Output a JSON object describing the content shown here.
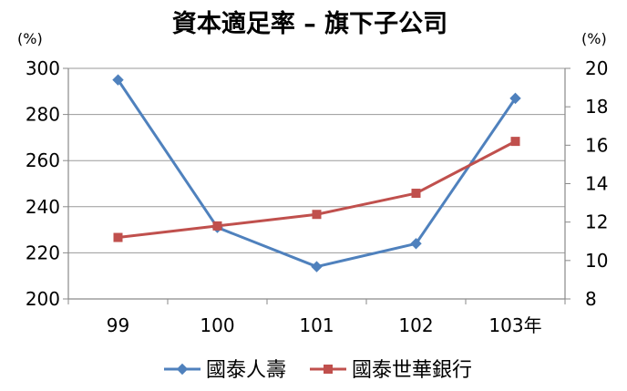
{
  "chart_data": {
    "type": "line",
    "title": "資本適足率 – 旗下子公司",
    "categories": [
      "99",
      "100",
      "101",
      "102",
      "103年"
    ],
    "y_left": {
      "unit": "(%)",
      "ylim": [
        200,
        300
      ],
      "ticks": [
        200,
        220,
        240,
        260,
        280,
        300
      ]
    },
    "y_right": {
      "unit": "(%)",
      "ylim": [
        8,
        20
      ],
      "ticks": [
        8,
        10,
        12,
        14,
        16,
        18,
        20
      ]
    },
    "series": [
      {
        "name": "國泰人壽",
        "axis": "left",
        "color": "#4F81BD",
        "marker": "diamond",
        "values": [
          295,
          231,
          214,
          224,
          287
        ]
      },
      {
        "name": "國泰世華銀行",
        "axis": "right",
        "color": "#C0504D",
        "marker": "square",
        "values": [
          11.2,
          11.8,
          12.4,
          13.5,
          16.2
        ]
      }
    ],
    "grid": true,
    "legend_position": "bottom"
  }
}
